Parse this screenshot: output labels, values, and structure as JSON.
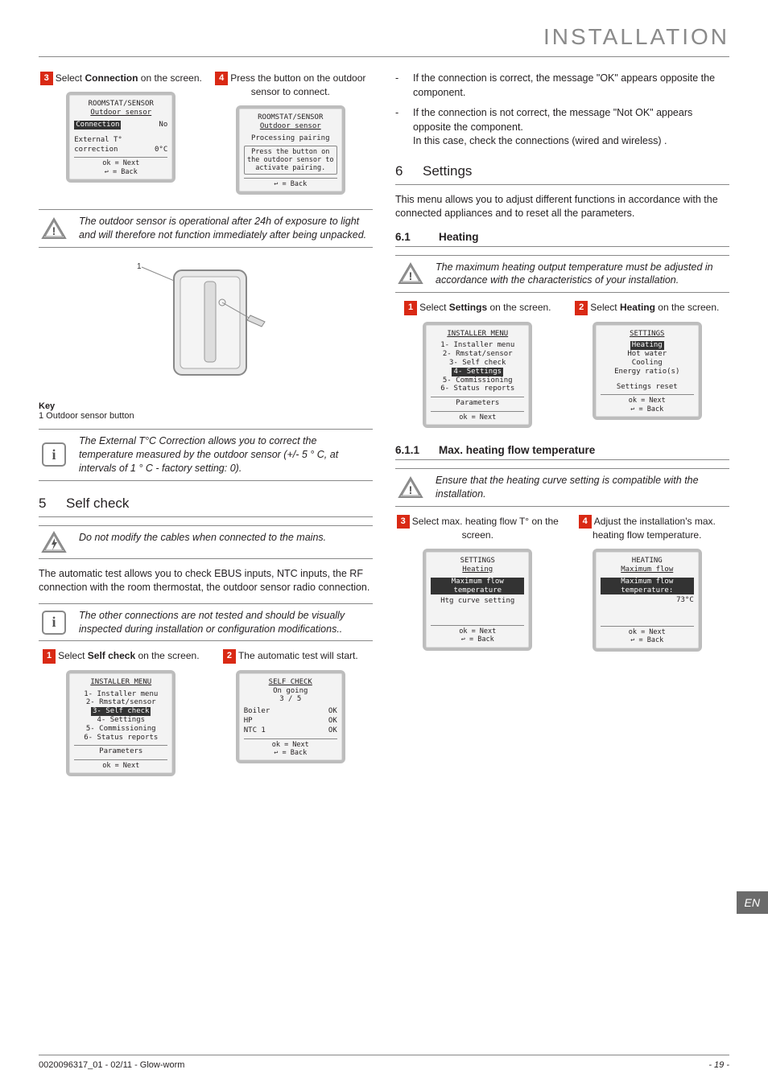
{
  "header": {
    "title": "INSTALLATION"
  },
  "footer": {
    "ref": "0020096317_01 - 02/11 - Glow-worm",
    "page": "- 19 -",
    "lang": "EN"
  },
  "colors": {
    "accent": "#d92914",
    "grey": "#888888",
    "lcd_border": "#bdbdbd"
  },
  "left": {
    "step3": {
      "num": "3",
      "text_a": "Select ",
      "bold": "Connection",
      "text_b": " on the screen."
    },
    "step4": {
      "num": "4",
      "text": "Press the button on the outdoor sensor to connect."
    },
    "lcd_a": {
      "title": "ROOMSTAT/SENSOR",
      "sub": "Outdoor sensor",
      "row1_l": "Connection",
      "row1_r": "No",
      "row2_l": "External T°",
      "row2_l2": "correction",
      "row2_r": "0°C",
      "foot1": "ok  = Next",
      "foot2": "↩   = Back"
    },
    "lcd_b": {
      "title": "ROOMSTAT/SENSOR",
      "sub": "Outdoor sensor",
      "line1": "Processing pairing",
      "line2": "Press the button on the outdoor sensor to activate pairing.",
      "foot": "↩   = Back"
    },
    "note1": "The outdoor sensor is operational after 24h of exposure to light and will therefore not function immediately after being unpacked.",
    "diagram": {
      "callout": "1",
      "key_label": "Key",
      "key_item": "1     Outdoor sensor button"
    },
    "note2": "The External T°C Correction allows you to correct the temperature measured by the outdoor sensor (+/- 5 ° C, at intervals of  1 ° C - factory setting: 0).",
    "section5": {
      "num": "5",
      "title": "Self check"
    },
    "warn5": "Do not modify the cables when connected to the mains.",
    "para5": "The automatic test allows you to check EBUS inputs, NTC inputs, the RF connection with the room thermostat, the outdoor sensor radio connection.",
    "note3": "The other connections are not tested and should be visually inspected during installation or configuration modifications..",
    "step5_1": {
      "num": "1",
      "text_a": "Select ",
      "bold": "Self check",
      "text_b": " on the screen."
    },
    "step5_2": {
      "num": "2",
      "text": "The automatic test will start."
    },
    "lcd_c": {
      "title": "INSTALLER MENU",
      "items": [
        "1- Installer menu",
        "2- Rmstat/sensor",
        "3- Self check",
        "4- Settings",
        "5- Commissioning",
        "6- Status reports"
      ],
      "hl_index": 2,
      "param": "Parameters",
      "foot": "ok  = Next"
    },
    "lcd_d": {
      "title": "SELF CHECK",
      "sub": "On going",
      "sub2": "3 / 5",
      "rows": [
        [
          "Boiler",
          "OK"
        ],
        [
          "HP",
          "OK"
        ],
        [
          "NTC 1",
          "OK"
        ]
      ],
      "foot1": "ok  = Next",
      "foot2": "↩   = Back"
    }
  },
  "right": {
    "bullets": [
      "If the connection is correct, the message \"OK\" appears opposite the component.",
      "If the connection is not correct, the message \"Not OK\" appears opposite the component.\nIn this case, check the connections (wired and wireless) ."
    ],
    "section6": {
      "num": "6",
      "title": "Settings"
    },
    "para6": "This menu allows you to adjust different functions in accordance with the connected appliances and to reset all the parameters.",
    "sub61": {
      "num": "6.1",
      "title": "Heating"
    },
    "warn61": "The maximum heating output temperature must be adjusted in accordance with the characteristics of your installation.",
    "step61_1": {
      "num": "1",
      "text_a": "Select ",
      "bold": "Settings",
      "text_b": " on the screen."
    },
    "step61_2": {
      "num": "2",
      "text_a": "Select ",
      "bold": "Heating",
      "text_b": " on the screen."
    },
    "lcd_e": {
      "title": "INSTALLER MENU",
      "items": [
        "1- Installer menu",
        "2- Rmstat/sensor",
        "3- Self check",
        "4- Settings",
        "5- Commissioning",
        "6- Status reports"
      ],
      "hl_index": 3,
      "param": "Parameters",
      "foot": "ok  = Next"
    },
    "lcd_f": {
      "title": "SETTINGS",
      "items": [
        "Heating",
        "Hot water",
        "Cooling",
        "Energy ratio(s)"
      ],
      "hl_index": 0,
      "reset": "Settings reset",
      "foot1": "ok  = Next",
      "foot2": "↩   = Back"
    },
    "sub611": {
      "num": "6.1.1",
      "title": "Max. heating flow temperature"
    },
    "warn611": "Ensure that the heating curve setting is compatible with the installation.",
    "step611_3": {
      "num": "3",
      "text": "Select max. heating flow T° on the screen."
    },
    "step611_4": {
      "num": "4",
      "text": "Adjust the installation's max. heating flow temperature."
    },
    "lcd_g": {
      "title": "SETTINGS",
      "sub": "Heating",
      "hl": "Maximum flow temperature",
      "line": "Htg curve setting",
      "foot1": "ok  = Next",
      "foot2": "↩   = Back"
    },
    "lcd_h": {
      "title": "HEATING",
      "sub": "Maximum flow",
      "hl": "Maximum flow temperature:",
      "val": "73°C",
      "foot1": "ok  = Next",
      "foot2": "↩   = Back"
    }
  }
}
